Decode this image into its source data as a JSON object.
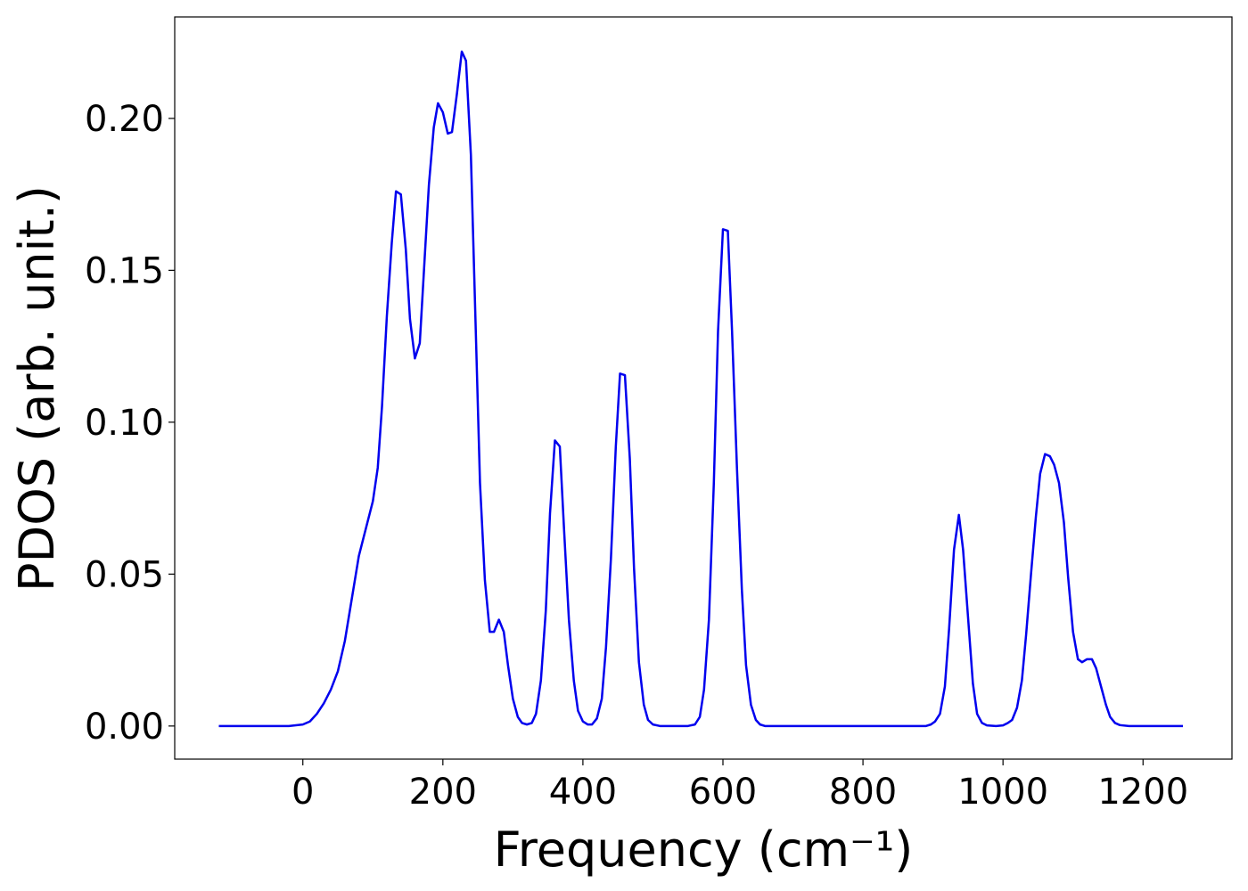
{
  "chart_data": {
    "type": "line",
    "xlabel": "Frequency (cm⁻¹)",
    "ylabel": "PDOS (arb. unit.)",
    "xlim": [
      -183,
      1327
    ],
    "ylim": [
      -0.0109,
      0.2334
    ],
    "xticks": [
      0,
      200,
      400,
      600,
      800,
      1000,
      1200
    ],
    "yticks": [
      {
        "value": 0,
        "label": "0.00"
      },
      {
        "value": 0.05,
        "label": "0.05"
      },
      {
        "value": 0.1,
        "label": "0.10"
      },
      {
        "value": 0.15,
        "label": "0.15"
      },
      {
        "value": 0.2,
        "label": "0.20"
      }
    ],
    "series": [
      {
        "color": "#0000ee",
        "x": [
          -120,
          -20,
          0,
          10,
          20,
          30,
          40,
          50,
          60,
          70,
          80,
          90,
          100,
          107,
          113,
          120,
          127,
          133,
          140,
          147,
          153,
          160,
          167,
          173,
          180,
          187,
          193,
          200,
          207,
          213,
          220,
          227,
          233,
          240,
          247,
          253,
          260,
          267,
          273,
          280,
          287,
          293,
          300,
          307,
          313,
          320,
          327,
          333,
          340,
          347,
          353,
          360,
          367,
          373,
          380,
          387,
          393,
          400,
          407,
          413,
          420,
          427,
          433,
          440,
          447,
          453,
          460,
          467,
          473,
          480,
          487,
          493,
          500,
          510,
          550,
          560,
          567,
          573,
          580,
          587,
          593,
          600,
          607,
          613,
          620,
          627,
          633,
          640,
          647,
          653,
          660,
          890,
          897,
          903,
          910,
          917,
          923,
          930,
          937,
          943,
          950,
          957,
          963,
          970,
          977,
          990,
          1000,
          1007,
          1013,
          1020,
          1027,
          1033,
          1040,
          1047,
          1053,
          1060,
          1067,
          1073,
          1080,
          1087,
          1093,
          1100,
          1107,
          1113,
          1120,
          1127,
          1133,
          1140,
          1147,
          1153,
          1160,
          1167,
          1180,
          1257
        ],
        "values": [
          0,
          0,
          0.0005,
          0.0015,
          0.004,
          0.0075,
          0.012,
          0.018,
          0.028,
          0.042,
          0.056,
          0.065,
          0.074,
          0.085,
          0.105,
          0.135,
          0.159,
          0.176,
          0.175,
          0.157,
          0.134,
          0.121,
          0.126,
          0.15,
          0.178,
          0.197,
          0.205,
          0.202,
          0.195,
          0.1955,
          0.208,
          0.222,
          0.219,
          0.188,
          0.13,
          0.08,
          0.048,
          0.031,
          0.031,
          0.035,
          0.031,
          0.02,
          0.009,
          0.003,
          0.001,
          0.0005,
          0.001,
          0.004,
          0.015,
          0.038,
          0.07,
          0.094,
          0.092,
          0.065,
          0.035,
          0.015,
          0.005,
          0.0015,
          0.0005,
          0.0005,
          0.0025,
          0.009,
          0.026,
          0.055,
          0.092,
          0.116,
          0.1155,
          0.088,
          0.052,
          0.021,
          0.007,
          0.002,
          0.0005,
          0,
          0,
          0.0005,
          0.003,
          0.012,
          0.035,
          0.08,
          0.13,
          0.1635,
          0.163,
          0.13,
          0.085,
          0.045,
          0.02,
          0.007,
          0.002,
          0.0005,
          0,
          0,
          0.0005,
          0.0015,
          0.004,
          0.013,
          0.032,
          0.058,
          0.0695,
          0.058,
          0.036,
          0.014,
          0.004,
          0.001,
          0.0002,
          0,
          0.0002,
          0.001,
          0.002,
          0.006,
          0.015,
          0.03,
          0.05,
          0.069,
          0.083,
          0.0895,
          0.0888,
          0.086,
          0.08,
          0.067,
          0.049,
          0.031,
          0.022,
          0.021,
          0.022,
          0.022,
          0.019,
          0.013,
          0.007,
          0.003,
          0.001,
          0.0003,
          0,
          0
        ]
      }
    ]
  }
}
